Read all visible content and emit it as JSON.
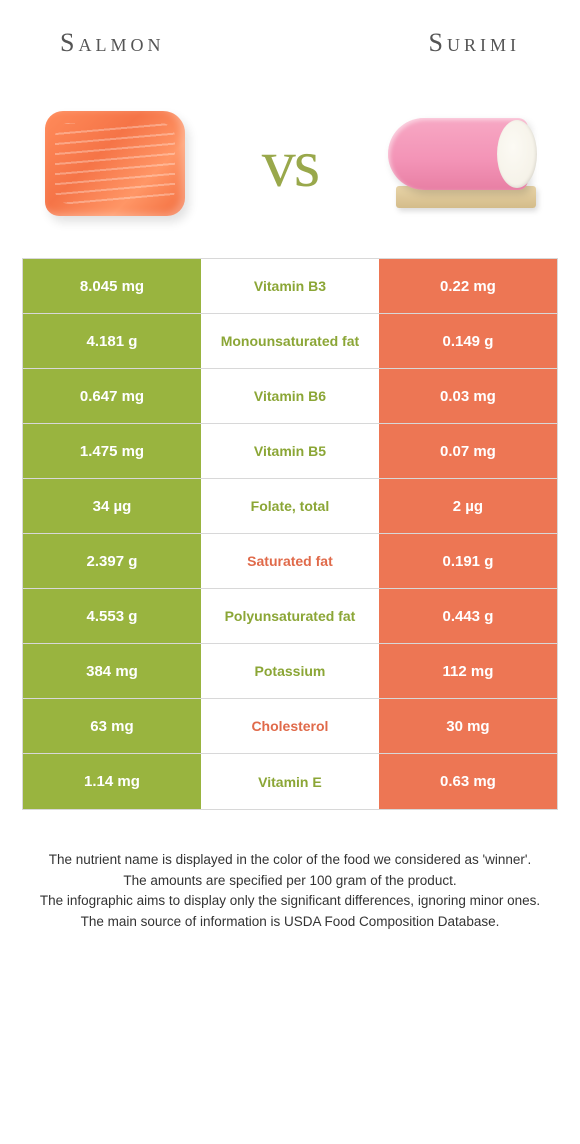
{
  "colors": {
    "green": "#99b43f",
    "orange": "#ed7654",
    "green_text": "#8ba636",
    "orange_text": "#e06a4a"
  },
  "header": {
    "left_title": "Salmon",
    "right_title": "Surimi",
    "vs": "vs"
  },
  "rows": [
    {
      "left": "8.045 mg",
      "label": "Vitamin B3",
      "right": "0.22 mg",
      "winner": "green"
    },
    {
      "left": "4.181 g",
      "label": "Monounsaturated fat",
      "right": "0.149 g",
      "winner": "green"
    },
    {
      "left": "0.647 mg",
      "label": "Vitamin B6",
      "right": "0.03 mg",
      "winner": "green"
    },
    {
      "left": "1.475 mg",
      "label": "Vitamin B5",
      "right": "0.07 mg",
      "winner": "green"
    },
    {
      "left": "34 µg",
      "label": "Folate, total",
      "right": "2 µg",
      "winner": "green"
    },
    {
      "left": "2.397 g",
      "label": "Saturated fat",
      "right": "0.191 g",
      "winner": "orange"
    },
    {
      "left": "4.553 g",
      "label": "Polyunsaturated fat",
      "right": "0.443 g",
      "winner": "green"
    },
    {
      "left": "384 mg",
      "label": "Potassium",
      "right": "112 mg",
      "winner": "green"
    },
    {
      "left": "63 mg",
      "label": "Cholesterol",
      "right": "30 mg",
      "winner": "orange"
    },
    {
      "left": "1.14 mg",
      "label": "Vitamin E",
      "right": "0.63 mg",
      "winner": "green"
    }
  ],
  "footer": {
    "line1": "The nutrient name is displayed in the color of the food we considered as 'winner'.",
    "line2": "The amounts are specified per 100 gram of the product.",
    "line3": "The infographic aims to display only the significant differences, ignoring minor ones.",
    "line4": "The main source of information is USDA Food Composition Database."
  }
}
